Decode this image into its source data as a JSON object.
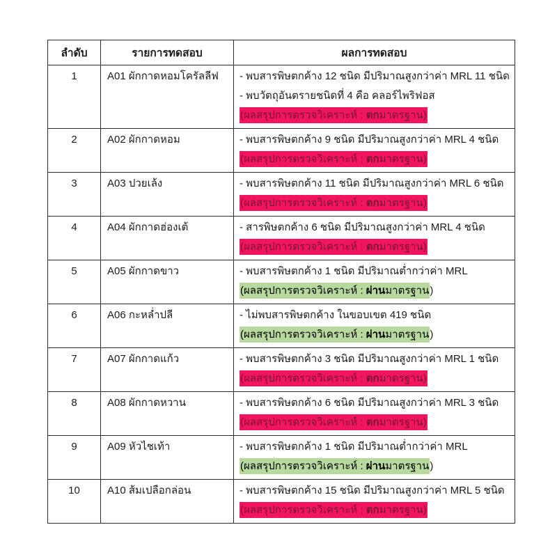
{
  "table": {
    "headers": [
      "ลำดับ",
      "รายการทดสอบ",
      "ผลการทดสอบ"
    ],
    "summary_prefix": "(ผลสรุปการตรวจวิเคราะห์ : ",
    "fail_status": "ตก",
    "pass_status": "ผ่าน",
    "summary_suffix": "มาตรฐาน",
    "close_paren": ")",
    "colors": {
      "fail_highlight_bg": "#F1145F",
      "fail_highlight_text": "#7B1430",
      "pass_highlight_bg": "#B7D9A0",
      "pass_highlight_text": "#000000",
      "border": "#2b2b2b",
      "page_bg": "#ffffff"
    },
    "rows": [
      {
        "no": "1",
        "item": "A01 ผักกาดหอมโครัลลีฟ",
        "results": [
          "- พบสารพิษตกค้าง 12 ชนิด มีปริมาณสูงกว่าค่า MRL 11 ชนิด",
          "- พบวัตถุอันตรายชนิดที่ 4 คือ คลอร์ไพริฟอส"
        ],
        "status": "fail"
      },
      {
        "no": "2",
        "item": "A02 ผักกาดหอม",
        "results": [
          "- พบสารพิษตกค้าง 9 ชนิด มีปริมาณสูงกว่าค่า MRL 4 ชนิด"
        ],
        "status": "fail"
      },
      {
        "no": "3",
        "item": "A03 ปวยเล้ง",
        "results": [
          "- พบสารพิษตกค้าง 11 ชนิด มีปริมาณสูงกว่าค่า MRL 6 ชนิด"
        ],
        "status": "fail"
      },
      {
        "no": "4",
        "item": "A04 ผักกาดฮ่องเต้",
        "results": [
          "- สารพิษตกค้าง 6 ชนิด มีปริมาณสูงกว่าค่า MRL 4 ชนิด"
        ],
        "status": "fail"
      },
      {
        "no": "5",
        "item": "A05 ผักกาดขาว",
        "results": [
          "- พบสารพิษตกค้าง 1 ชนิด มีปริมาณต่ำกว่าค่า MRL"
        ],
        "status": "pass"
      },
      {
        "no": "6",
        "item": "A06 กะหล่ำปลี",
        "results": [
          "- ไม่พบสารพิษตกค้าง ในขอบเขต 419 ชนิด"
        ],
        "status": "pass"
      },
      {
        "no": "7",
        "item": "A07 ผักกาดแก้ว",
        "results": [
          "- พบสารพิษตกค้าง 3 ชนิด มีปริมาณสูงกว่าค่า MRL 1 ชนิด"
        ],
        "status": "fail"
      },
      {
        "no": "8",
        "item": "A08 ผักกาดหวาน",
        "results": [
          "- พบสารพิษตกค้าง 6 ชนิด มีปริมาณสูงกว่าค่า MRL 3 ชนิด"
        ],
        "status": "fail"
      },
      {
        "no": "9",
        "item": "A09 หัวไชเท้า",
        "results": [
          "- พบสารพิษตกค้าง 1 ชนิด มีปริมาณต่ำกว่าค่า MRL"
        ],
        "status": "pass"
      },
      {
        "no": "10",
        "item": "A10 ส้มเปลือกล่อน",
        "results": [
          "- พบสารพิษตกค้าง 15 ชนิด มีปริมาณสูงกว่าค่า MRL 5 ชนิด"
        ],
        "status": "fail"
      }
    ]
  }
}
